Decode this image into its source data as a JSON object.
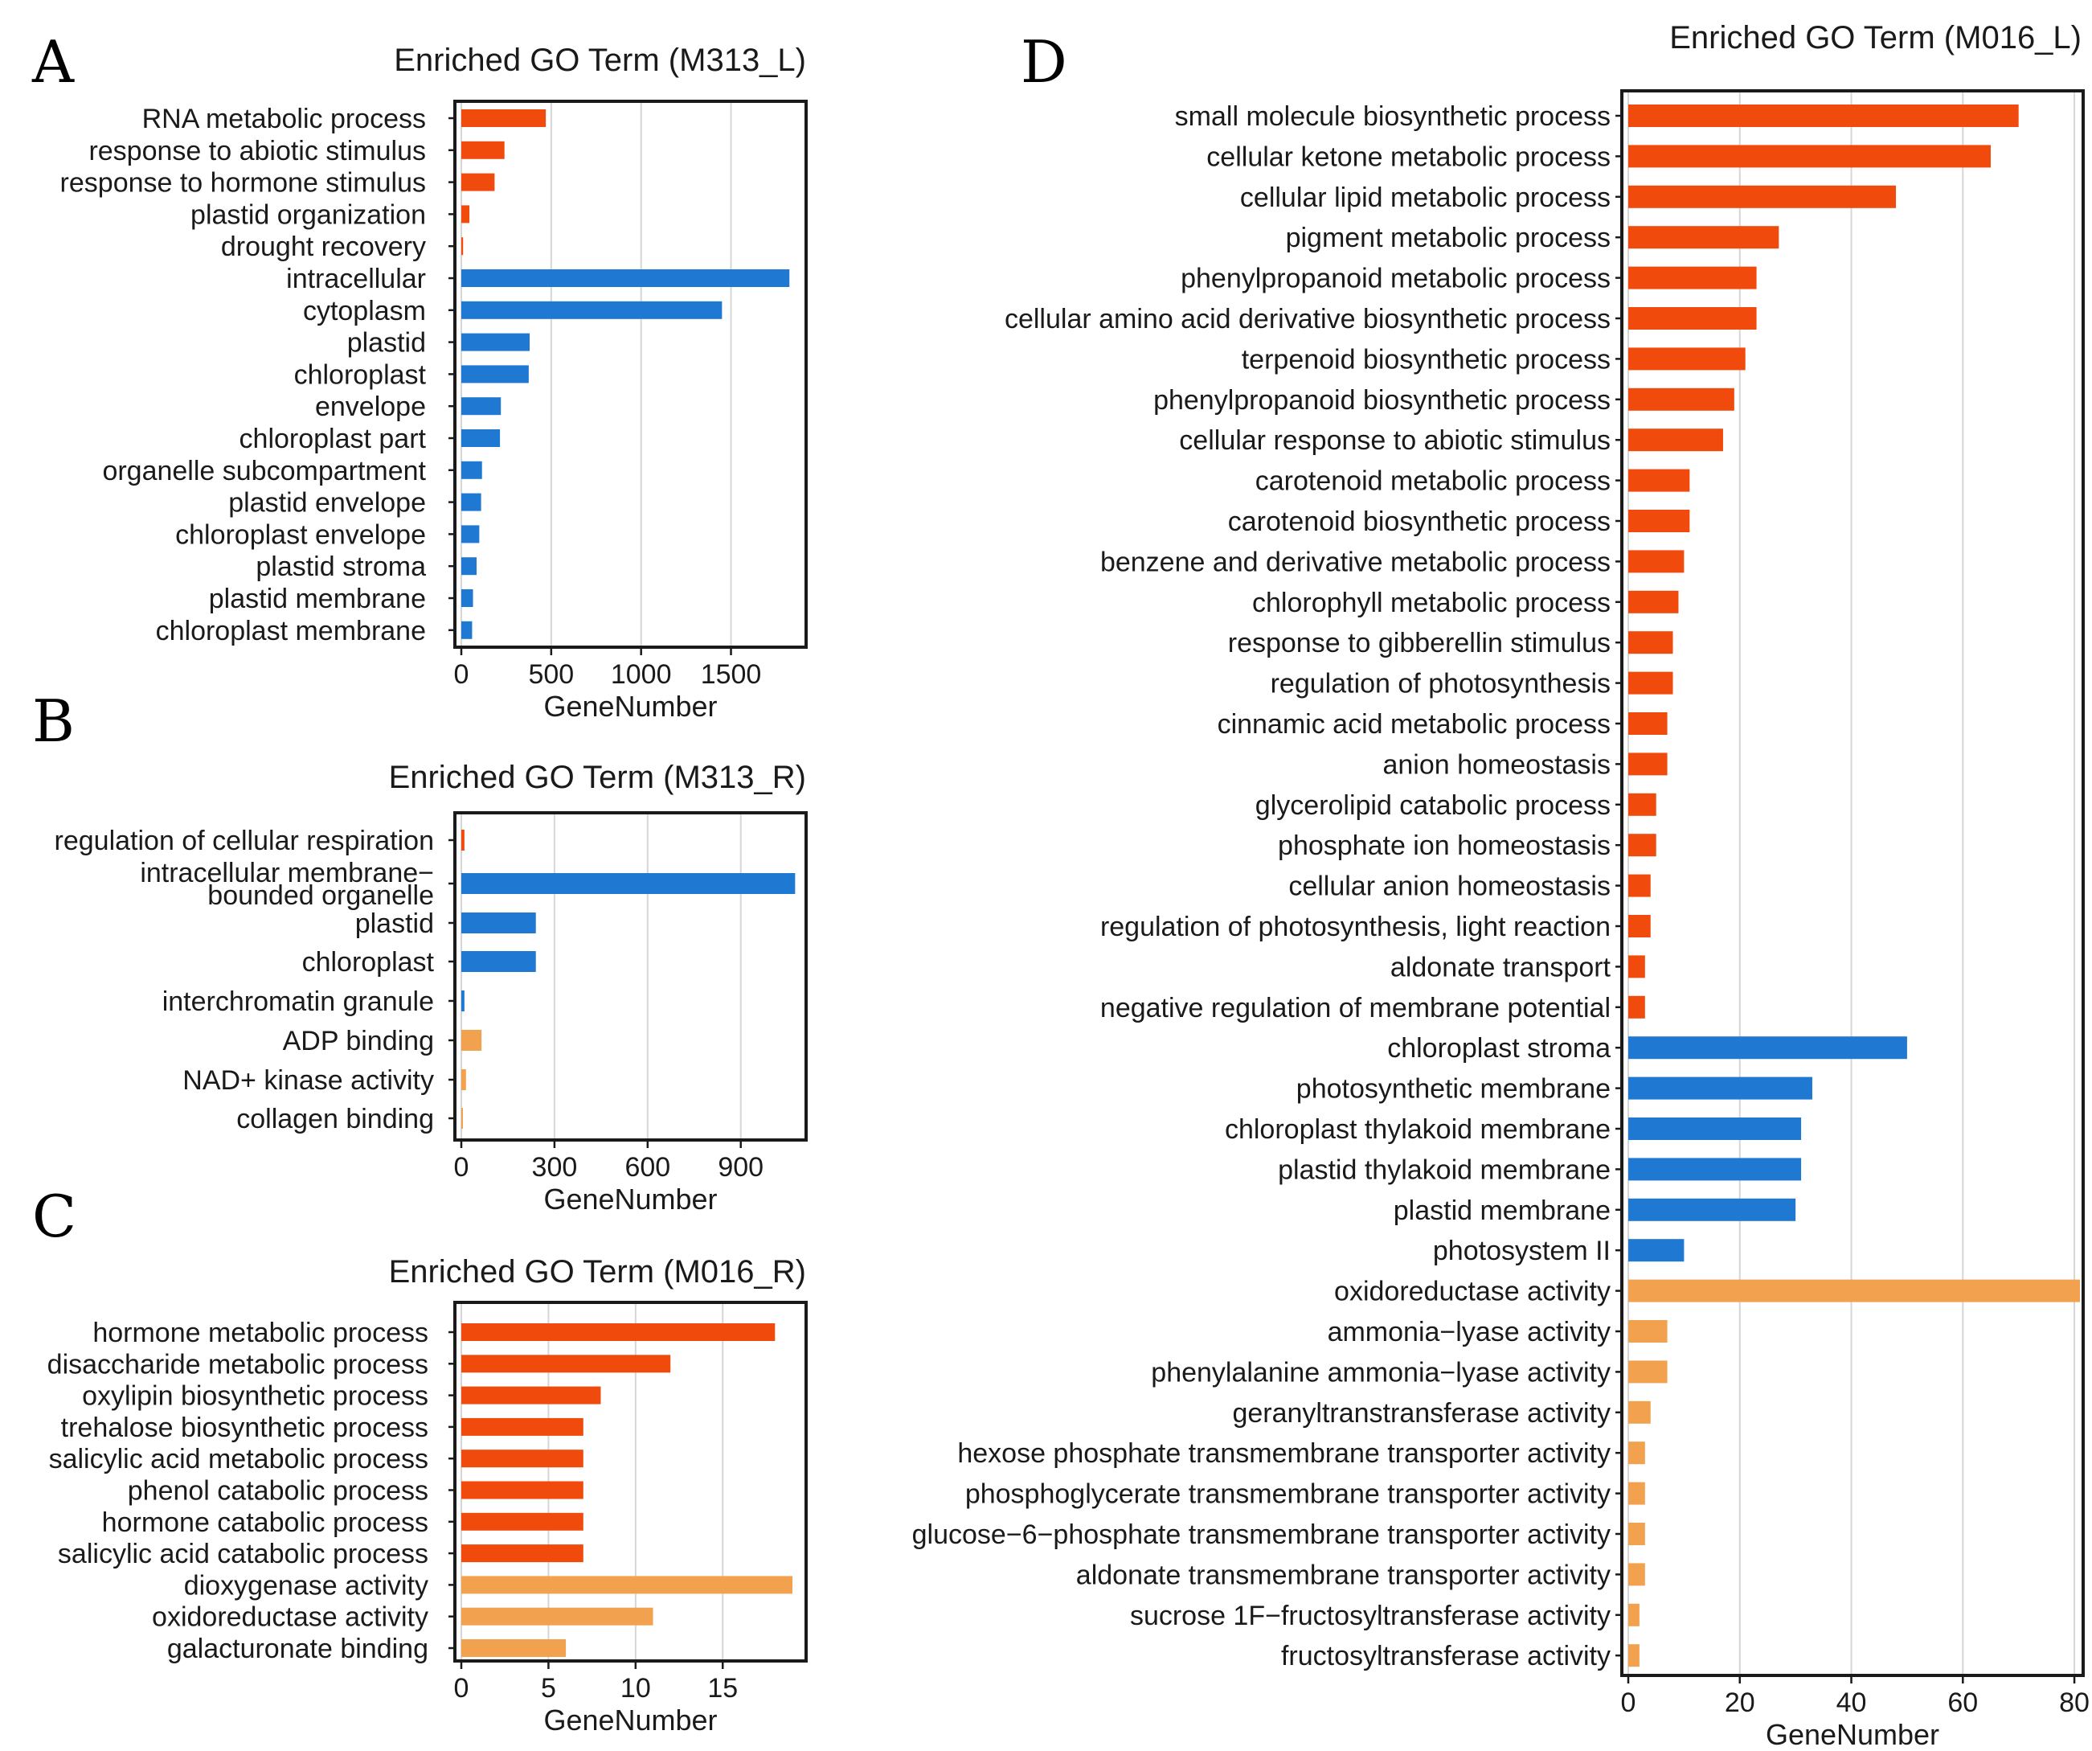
{
  "colors": {
    "biological_process": "#f04a0c",
    "cellular_component": "#1f78d1",
    "molecular_function": "#f2a14e"
  },
  "chart_data": [
    {
      "id": "A",
      "type": "bar",
      "orientation": "horizontal",
      "panel_letter": "A",
      "title": "Enriched GO Term (M313_L)",
      "xlabel": "GeneNumber",
      "ylabel": "",
      "xlim": [
        0,
        1900
      ],
      "xticks": [
        0,
        500,
        1000,
        1500
      ],
      "xtick_labels": [
        "0",
        "500",
        "1000",
        "1500"
      ],
      "categories": [
        "RNA metabolic process",
        "response to abiotic stimulus",
        "response to hormone stimulus",
        "plastid organization",
        "drought recovery",
        "intracellular",
        "cytoplasm",
        "plastid",
        "chloroplast",
        "envelope",
        "chloroplast part",
        "organelle subcompartment",
        "plastid envelope",
        "chloroplast envelope",
        "plastid stroma",
        "plastid membrane",
        "chloroplast membrane"
      ],
      "values": [
        470,
        240,
        185,
        45,
        10,
        1825,
        1450,
        380,
        375,
        220,
        215,
        115,
        110,
        100,
        85,
        65,
        60
      ],
      "groups": [
        "biological_process",
        "biological_process",
        "biological_process",
        "biological_process",
        "biological_process",
        "cellular_component",
        "cellular_component",
        "cellular_component",
        "cellular_component",
        "cellular_component",
        "cellular_component",
        "cellular_component",
        "cellular_component",
        "cellular_component",
        "cellular_component",
        "cellular_component",
        "cellular_component"
      ]
    },
    {
      "id": "B",
      "type": "bar",
      "orientation": "horizontal",
      "panel_letter": "B",
      "title": "Enriched GO Term (M313_R)",
      "xlabel": "GeneNumber",
      "ylabel": "",
      "xlim": [
        0,
        1100
      ],
      "xticks": [
        0,
        300,
        600,
        900
      ],
      "xtick_labels": [
        "0",
        "300",
        "600",
        "900"
      ],
      "categories": [
        "regulation of cellular respiration",
        "intracellular membrane-bounded organelle",
        "plastid",
        "chloroplast",
        "interchromatin granule",
        "ADP binding",
        "NAD+ kinase activity",
        "collagen binding"
      ],
      "category_lines": [
        [
          "regulation of cellular respiration"
        ],
        [
          "intracellular membrane−",
          "bounded organelle"
        ],
        [
          "plastid"
        ],
        [
          "chloroplast"
        ],
        [
          "interchromatin granule"
        ],
        [
          "ADP binding"
        ],
        [
          "NAD+ kinase activity"
        ],
        [
          "collagen binding"
        ]
      ],
      "values": [
        10,
        1075,
        240,
        240,
        10,
        65,
        15,
        5
      ],
      "groups": [
        "biological_process",
        "cellular_component",
        "cellular_component",
        "cellular_component",
        "cellular_component",
        "molecular_function",
        "molecular_function",
        "molecular_function"
      ]
    },
    {
      "id": "C",
      "type": "bar",
      "orientation": "horizontal",
      "panel_letter": "C",
      "title": "Enriched GO Term (M016_R)",
      "xlabel": "GeneNumber",
      "ylabel": "",
      "xlim": [
        0,
        19.6
      ],
      "xticks": [
        0,
        5,
        10,
        15
      ],
      "xtick_labels": [
        "0",
        "5",
        "10",
        "15"
      ],
      "categories": [
        "hormone metabolic process",
        "disaccharide metabolic process",
        "oxylipin biosynthetic process",
        "trehalose biosynthetic process",
        "salicylic acid metabolic process",
        "phenol catabolic process",
        "hormone catabolic process",
        "salicylic acid catabolic process",
        "dioxygenase activity",
        "oxidoreductase activity",
        "galacturonate binding"
      ],
      "values": [
        18,
        12,
        8,
        7,
        7,
        7,
        7,
        7,
        19,
        11,
        6
      ],
      "groups": [
        "biological_process",
        "biological_process",
        "biological_process",
        "biological_process",
        "biological_process",
        "biological_process",
        "biological_process",
        "biological_process",
        "molecular_function",
        "molecular_function",
        "molecular_function"
      ]
    },
    {
      "id": "D",
      "type": "bar",
      "orientation": "horizontal",
      "panel_letter": "D",
      "title": "Enriched GO Term (M016_L)",
      "xlabel": "GeneNumber",
      "ylabel": "",
      "xlim": [
        0,
        81
      ],
      "xticks": [
        0,
        20,
        40,
        60,
        80
      ],
      "xtick_labels": [
        "0",
        "20",
        "40",
        "60",
        "80"
      ],
      "categories": [
        "small molecule biosynthetic process",
        "cellular ketone metabolic process",
        "cellular lipid metabolic process",
        "pigment metabolic process",
        "phenylpropanoid metabolic process",
        "cellular amino acid derivative biosynthetic process",
        "terpenoid biosynthetic process",
        "phenylpropanoid biosynthetic process",
        "cellular response to abiotic stimulus",
        "carotenoid metabolic process",
        "carotenoid biosynthetic process",
        "benzene and derivative metabolic process",
        "chlorophyll metabolic process",
        "response to gibberellin stimulus",
        "regulation of photosynthesis",
        "cinnamic acid metabolic process",
        "anion homeostasis",
        "glycerolipid catabolic process",
        "phosphate ion homeostasis",
        "cellular anion homeostasis",
        "regulation of photosynthesis, light reaction",
        "aldonate transport",
        "negative regulation of membrane potential",
        "chloroplast stroma",
        "photosynthetic membrane",
        "chloroplast thylakoid membrane",
        "plastid thylakoid membrane",
        "plastid membrane",
        "photosystem II",
        "oxidoreductase activity",
        "ammonia−lyase activity",
        "phenylalanine ammonia−lyase activity",
        "geranyltranstransferase activity",
        "hexose phosphate transmembrane transporter activity",
        "phosphoglycerate transmembrane transporter activity",
        "glucose−6−phosphate transmembrane transporter activity",
        "aldonate transmembrane transporter activity",
        "sucrose 1F−fructosyltransferase activity",
        "fructosyltransferase activity"
      ],
      "values": [
        70,
        65,
        48,
        27,
        23,
        23,
        21,
        19,
        17,
        11,
        11,
        10,
        9,
        8,
        8,
        7,
        7,
        5,
        5,
        4,
        4,
        3,
        3,
        50,
        33,
        31,
        31,
        30,
        10,
        81,
        7,
        7,
        4,
        3,
        3,
        3,
        3,
        2,
        2
      ],
      "groups": [
        "biological_process",
        "biological_process",
        "biological_process",
        "biological_process",
        "biological_process",
        "biological_process",
        "biological_process",
        "biological_process",
        "biological_process",
        "biological_process",
        "biological_process",
        "biological_process",
        "biological_process",
        "biological_process",
        "biological_process",
        "biological_process",
        "biological_process",
        "biological_process",
        "biological_process",
        "biological_process",
        "biological_process",
        "biological_process",
        "biological_process",
        "cellular_component",
        "cellular_component",
        "cellular_component",
        "cellular_component",
        "cellular_component",
        "cellular_component",
        "molecular_function",
        "molecular_function",
        "molecular_function",
        "molecular_function",
        "molecular_function",
        "molecular_function",
        "molecular_function",
        "molecular_function",
        "molecular_function",
        "molecular_function"
      ]
    }
  ]
}
